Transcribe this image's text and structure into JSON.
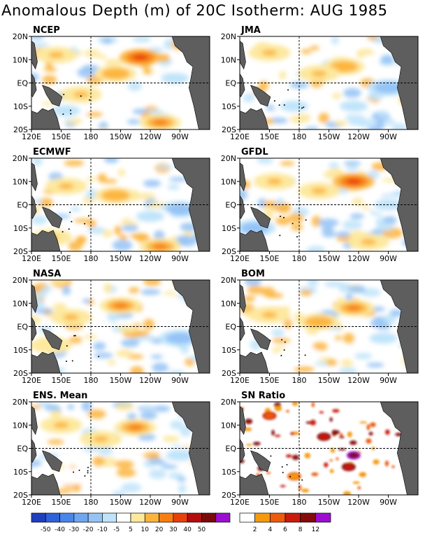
{
  "page_title": "Anomalous Depth (m) of 20C Isotherm: AUG 1985",
  "chart_data": [
    {
      "type": "heatmap",
      "title": "NCEP",
      "x_ticks": [
        "120E",
        "150E",
        "180",
        "150W",
        "120W",
        "90W"
      ],
      "y_ticks": [
        "20N",
        "10N",
        "EQ",
        "10S",
        "20S"
      ],
      "xlim": [
        120,
        300
      ],
      "ylim": [
        -20,
        20
      ],
      "features": [
        {
          "lon": 230,
          "lat": 11,
          "value": 30
        },
        {
          "lon": 205,
          "lat": 4,
          "value": 15
        },
        {
          "lon": 145,
          "lat": 12,
          "value": 10
        },
        {
          "lon": 170,
          "lat": -5,
          "value": 10
        },
        {
          "lon": 250,
          "lat": -17,
          "value": 20
        },
        {
          "lon": 265,
          "lat": 2,
          "value": -10
        },
        {
          "lon": 155,
          "lat": -12,
          "value": -10
        }
      ]
    },
    {
      "type": "heatmap",
      "title": "JMA",
      "x_ticks": [
        "120E",
        "150E",
        "180",
        "150W",
        "120W",
        "90W"
      ],
      "y_ticks": [
        "20N",
        "10N",
        "EQ",
        "10S",
        "20S"
      ],
      "xlim": [
        120,
        300
      ],
      "ylim": [
        -20,
        20
      ],
      "features": [
        {
          "lon": 225,
          "lat": 7,
          "value": 15
        },
        {
          "lon": 150,
          "lat": 13,
          "value": 10
        },
        {
          "lon": 200,
          "lat": 4,
          "value": 10
        },
        {
          "lon": 270,
          "lat": -2,
          "value": -20
        },
        {
          "lon": 175,
          "lat": -10,
          "value": -10
        },
        {
          "lon": 235,
          "lat": -10,
          "value": -10
        }
      ]
    },
    {
      "type": "heatmap",
      "title": "ECMWF",
      "x_ticks": [
        "120E",
        "150E",
        "180",
        "150W",
        "120W",
        "90W"
      ],
      "y_ticks": [
        "20N",
        "10N",
        "EQ",
        "10S",
        "20S"
      ],
      "xlim": [
        120,
        300
      ],
      "ylim": [
        -20,
        20
      ],
      "features": [
        {
          "lon": 205,
          "lat": 4,
          "value": 15
        },
        {
          "lon": 155,
          "lat": 8,
          "value": 10
        },
        {
          "lon": 140,
          "lat": -14,
          "value": 10
        },
        {
          "lon": 250,
          "lat": -18,
          "value": 20
        },
        {
          "lon": 270,
          "lat": -2,
          "value": -20
        },
        {
          "lon": 240,
          "lat": -5,
          "value": -10
        }
      ]
    },
    {
      "type": "heatmap",
      "title": "GFDL",
      "x_ticks": [
        "120E",
        "150E",
        "180",
        "150W",
        "120W",
        "90W"
      ],
      "y_ticks": [
        "20N",
        "10N",
        "EQ",
        "10S",
        "20S"
      ],
      "xlim": [
        120,
        300
      ],
      "ylim": [
        -20,
        20
      ],
      "features": [
        {
          "lon": 235,
          "lat": 10,
          "value": 30
        },
        {
          "lon": 200,
          "lat": 6,
          "value": 10
        },
        {
          "lon": 155,
          "lat": 10,
          "value": 10
        },
        {
          "lon": 250,
          "lat": -16,
          "value": 10
        },
        {
          "lon": 135,
          "lat": -10,
          "value": -20
        },
        {
          "lon": 270,
          "lat": 0,
          "value": -10
        }
      ]
    },
    {
      "type": "heatmap",
      "title": "NASA",
      "x_ticks": [
        "120E",
        "150E",
        "180",
        "150W",
        "120W",
        "90W"
      ],
      "y_ticks": [
        "20N",
        "10N",
        "EQ",
        "10S",
        "20S"
      ],
      "xlim": [
        120,
        300
      ],
      "ylim": [
        -20,
        20
      ],
      "features": [
        {
          "lon": 210,
          "lat": 9,
          "value": 20
        },
        {
          "lon": 160,
          "lat": 4,
          "value": 10
        },
        {
          "lon": 140,
          "lat": -8,
          "value": 5
        },
        {
          "lon": 270,
          "lat": -5,
          "value": -20
        },
        {
          "lon": 255,
          "lat": 10,
          "value": -5
        }
      ]
    },
    {
      "type": "heatmap",
      "title": "BOM",
      "x_ticks": [
        "120E",
        "150E",
        "180",
        "150W",
        "120W",
        "90W"
      ],
      "y_ticks": [
        "20N",
        "10N",
        "EQ",
        "10S",
        "20S"
      ],
      "xlim": [
        120,
        300
      ],
      "ylim": [
        -20,
        20
      ],
      "features": [
        {
          "lon": 200,
          "lat": 2,
          "value": 15
        },
        {
          "lon": 235,
          "lat": 8,
          "value": 20
        },
        {
          "lon": 150,
          "lat": 5,
          "value": 10
        },
        {
          "lon": 265,
          "lat": -5,
          "value": -10
        },
        {
          "lon": 180,
          "lat": -12,
          "value": -5
        }
      ]
    },
    {
      "type": "heatmap",
      "title": "ENS. Mean",
      "x_ticks": [
        "120E",
        "150E",
        "180",
        "150W",
        "120W",
        "90W"
      ],
      "y_ticks": [
        "20N",
        "10N",
        "EQ",
        "10S",
        "20S"
      ],
      "xlim": [
        120,
        300
      ],
      "ylim": [
        -20,
        20
      ],
      "features": [
        {
          "lon": 225,
          "lat": 9,
          "value": 20
        },
        {
          "lon": 190,
          "lat": 4,
          "value": 10
        },
        {
          "lon": 150,
          "lat": 10,
          "value": 10
        },
        {
          "lon": 270,
          "lat": -3,
          "value": -10
        },
        {
          "lon": 160,
          "lat": -12,
          "value": -5
        }
      ]
    },
    {
      "type": "heatmap",
      "title": "SN Ratio",
      "x_ticks": [
        "120E",
        "150E",
        "180",
        "150W",
        "120W",
        "90W"
      ],
      "y_ticks": [
        "20N",
        "10N",
        "EQ",
        "10S",
        "20S"
      ],
      "xlim": [
        120,
        300
      ],
      "ylim": [
        -20,
        20
      ],
      "features": [
        {
          "lon": 205,
          "lat": 5,
          "value": 8
        },
        {
          "lon": 235,
          "lat": -3,
          "value": 12
        },
        {
          "lon": 150,
          "lat": 14,
          "value": 6
        },
        {
          "lon": 175,
          "lat": -12,
          "value": 4
        },
        {
          "lon": 230,
          "lat": -8,
          "value": 8
        }
      ]
    }
  ],
  "colorbars": [
    {
      "labels": [
        "-50",
        "-40",
        "-30",
        "-20",
        "-10",
        "-5",
        "5",
        "10",
        "20",
        "30",
        "40",
        "50"
      ],
      "colors": [
        "#1f3fbf",
        "#2f62d8",
        "#4a86ea",
        "#6ea7f0",
        "#95c3f5",
        "#bfe4fa",
        "#ffffff",
        "#fde89c",
        "#fcb43c",
        "#f77f11",
        "#e8400b",
        "#b40d0d",
        "#7a0a0a",
        "#9b0ed1"
      ]
    },
    {
      "labels": [
        "2",
        "4",
        "6",
        "8",
        "12"
      ],
      "colors": [
        "#ffffff",
        "#f59a0f",
        "#ec5b0e",
        "#c91a0e",
        "#850a0a",
        "#9b0ed1"
      ]
    }
  ],
  "colors": {
    "land": "#5e5e5e",
    "grid": "#000000"
  }
}
